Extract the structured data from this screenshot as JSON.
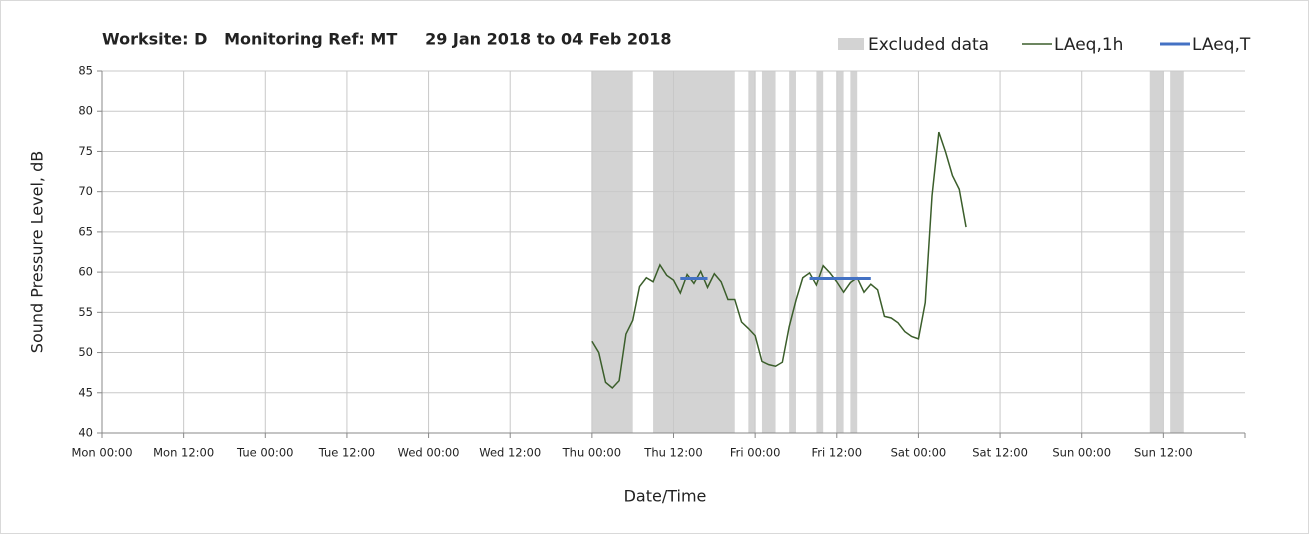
{
  "chart_data": {
    "type": "line",
    "title": "Worksite: D   Monitoring Ref: MT     29 Jan 2018 to 04 Feb 2018",
    "x_label": "Date/Time",
    "y_label": "Sound Pressure Level, dB",
    "xlim": [
      0,
      168
    ],
    "xticks": [
      {
        "value": 0,
        "label": "Mon 00:00"
      },
      {
        "value": 12,
        "label": "Mon 12:00"
      },
      {
        "value": 24,
        "label": "Tue 00:00"
      },
      {
        "value": 36,
        "label": "Tue 12:00"
      },
      {
        "value": 48,
        "label": "Wed 00:00"
      },
      {
        "value": 60,
        "label": "Wed 12:00"
      },
      {
        "value": 72,
        "label": "Thu 00:00"
      },
      {
        "value": 84,
        "label": "Thu 12:00"
      },
      {
        "value": 96,
        "label": "Fri 00:00"
      },
      {
        "value": 108,
        "label": "Fri 12:00"
      },
      {
        "value": 120,
        "label": "Sat 00:00"
      },
      {
        "value": 132,
        "label": "Sat 12:00"
      },
      {
        "value": 144,
        "label": "Sun 00:00"
      },
      {
        "value": 156,
        "label": "Sun 12:00"
      }
    ],
    "ylim": [
      40,
      85
    ],
    "yticks": [
      40,
      45,
      50,
      55,
      60,
      65,
      70,
      75,
      80,
      85
    ],
    "grid": true,
    "legend": "top-right",
    "excluded": {
      "name": "Excluded data",
      "color": "#d3d3d3",
      "ranges": [
        [
          72,
          78
        ],
        [
          81,
          93
        ],
        [
          95,
          96
        ],
        [
          97,
          99
        ],
        [
          101,
          102
        ],
        [
          105,
          106
        ],
        [
          108,
          109
        ],
        [
          110,
          111
        ],
        [
          154,
          156
        ],
        [
          157,
          159
        ]
      ]
    },
    "series": [
      {
        "name": "LAeq,1h",
        "color": "#3b5e2b",
        "x": [
          72,
          73,
          74,
          75,
          76,
          77,
          78,
          79,
          80,
          81,
          82,
          83,
          84,
          85,
          86,
          87,
          88,
          89,
          90,
          91,
          92,
          93,
          94,
          95,
          96,
          97,
          98,
          99,
          100,
          101,
          102,
          103,
          104,
          105,
          106,
          107,
          108,
          109,
          110,
          111,
          112,
          113,
          114,
          115,
          116,
          117,
          118,
          119,
          120,
          121,
          122,
          123,
          124,
          125,
          126,
          127
        ],
        "values": [
          51.4,
          50,
          46.3,
          45.6,
          46.5,
          52.3,
          54,
          58.2,
          59.3,
          58.8,
          60.9,
          59.6,
          59,
          57.4,
          59.7,
          58.6,
          60.1,
          58.1,
          59.8,
          58.8,
          56.6,
          56.6,
          53.8,
          53,
          52.1,
          48.9,
          48.5,
          48.3,
          48.8,
          53.2,
          56.5,
          59.3,
          59.9,
          58.4,
          60.8,
          59.9,
          58.8,
          57.5,
          58.7,
          59.3,
          57.5,
          58.5,
          57.8,
          54.5,
          54.3,
          53.7,
          52.6,
          52,
          51.7,
          56.2,
          69.5,
          77.4,
          74.9,
          72,
          70.3,
          65.6
        ]
      },
      {
        "name": "LAeq,T",
        "color": "#4472c4",
        "segments": [
          {
            "x": [
              85,
              89
            ],
            "values": [
              59.2,
              59.2
            ]
          },
          {
            "x": [
              104,
              113
            ],
            "values": [
              59.2,
              59.2
            ]
          }
        ]
      }
    ]
  }
}
